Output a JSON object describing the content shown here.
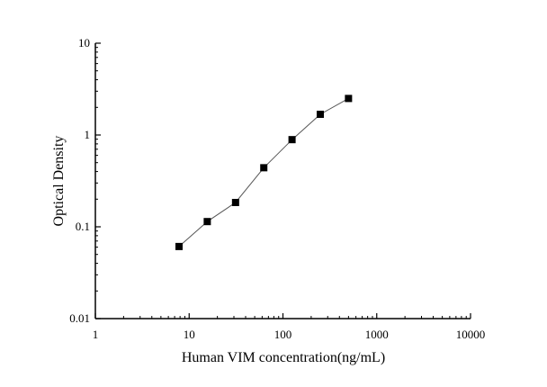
{
  "chart_data": {
    "type": "line",
    "title": "",
    "xlabel": "Human VIM concentration(ng/mL)",
    "ylabel": "Optical Density",
    "xscale": "log",
    "yscale": "log",
    "xlim": [
      1,
      10000
    ],
    "ylim": [
      0.01,
      10
    ],
    "xticks": [
      "1",
      "10",
      "100",
      "1000",
      "10000"
    ],
    "yticks": [
      "0.01",
      "0.1",
      "1",
      "10"
    ],
    "grid": false,
    "marker": "square",
    "colors": {
      "line": "#555555",
      "marker": "#000000",
      "axis": "#000000"
    },
    "series": [
      {
        "x": [
          7.8,
          15.6,
          31.25,
          62.5,
          125,
          250,
          500
        ],
        "y": [
          0.061,
          0.114,
          0.184,
          0.44,
          0.89,
          1.68,
          2.5
        ]
      }
    ]
  }
}
